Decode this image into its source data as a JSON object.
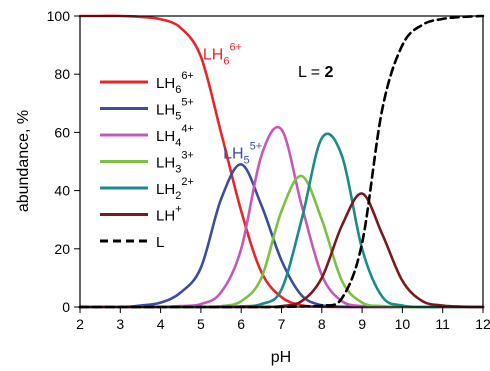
{
  "chart_data": {
    "type": "line",
    "xlabel": "pH",
    "ylabel": "abundance, %",
    "xlim": [
      2,
      12
    ],
    "ylim": [
      0,
      100
    ],
    "xticks": [
      "2",
      "3",
      "4",
      "5",
      "6",
      "7",
      "8",
      "9",
      "10",
      "11",
      "12"
    ],
    "yticks": [
      "0",
      "20",
      "40",
      "60",
      "80",
      "100"
    ],
    "param_label": {
      "name": "L = ",
      "value": "2"
    },
    "x": [
      2,
      2.5,
      3,
      3.5,
      4,
      4.5,
      5,
      5.5,
      6,
      6.5,
      7,
      7.5,
      8,
      8.5,
      9,
      9.5,
      10,
      10.5,
      11,
      11.5,
      12
    ],
    "series": [
      {
        "name": "LH",
        "sub": "6",
        "sup": "6+",
        "color": "#e8262a",
        "dash": false,
        "values": [
          100,
          100,
          100,
          99.7,
          98.9,
          95.9,
          86,
          60,
          33,
          12,
          3.4,
          0.6,
          0.1,
          0,
          0,
          0,
          0,
          0,
          0,
          0,
          0
        ]
      },
      {
        "name": "LH",
        "sub": "5",
        "sup": "5+",
        "color": "#3c4da0",
        "dash": false,
        "values": [
          0,
          0,
          0,
          0.5,
          1.5,
          5,
          13.5,
          37,
          49,
          35,
          16,
          4,
          0.6,
          0.1,
          0,
          0,
          0,
          0,
          0,
          0,
          0
        ]
      },
      {
        "name": "LH",
        "sub": "4",
        "sup": "4+",
        "color": "#c659b5",
        "dash": false,
        "values": [
          0,
          0,
          0,
          0,
          0,
          0.3,
          1,
          5,
          20,
          52,
          61,
          35,
          11,
          2,
          0.3,
          0,
          0,
          0,
          0,
          0,
          0
        ]
      },
      {
        "name": "LH",
        "sub": "3",
        "sup": "3+",
        "color": "#7bc142",
        "dash": false,
        "values": [
          0,
          0,
          0,
          0,
          0,
          0,
          0,
          0.3,
          2,
          10,
          33,
          45,
          30,
          9,
          1.5,
          0.3,
          0,
          0,
          0,
          0,
          0
        ]
      },
      {
        "name": "LH",
        "sub": "2",
        "sup": "2+",
        "color": "#1a8b87",
        "dash": false,
        "values": [
          0,
          0,
          0,
          0,
          0,
          0,
          0,
          0,
          0.2,
          1,
          6,
          30,
          58,
          52,
          20,
          3.5,
          0.5,
          0,
          0,
          0,
          0
        ]
      },
      {
        "name": "LH",
        "sub": "",
        "sup": "+",
        "color": "#7a1a1c",
        "dash": false,
        "values": [
          0,
          0,
          0,
          0,
          0,
          0,
          0,
          0,
          0,
          0,
          0.3,
          2,
          10,
          28,
          39,
          25,
          9,
          2,
          0.5,
          0.1,
          0
        ]
      },
      {
        "name": "L",
        "sub": "",
        "sup": "",
        "color": "#000000",
        "dash": true,
        "values": [
          0,
          0,
          0,
          0,
          0,
          0,
          0,
          0,
          0,
          0,
          0,
          0.2,
          0.5,
          3,
          22,
          68,
          90,
          97,
          99,
          99.7,
          100
        ]
      }
    ],
    "annotations": [
      {
        "name": "LH",
        "sub": "6",
        "sup": "6+",
        "color": "#e8262a",
        "x": 5.05,
        "y": 85
      },
      {
        "name": "LH",
        "sub": "5",
        "sup": "5+",
        "color": "#3c4da0",
        "x": 5.55,
        "y": 51
      }
    ]
  }
}
